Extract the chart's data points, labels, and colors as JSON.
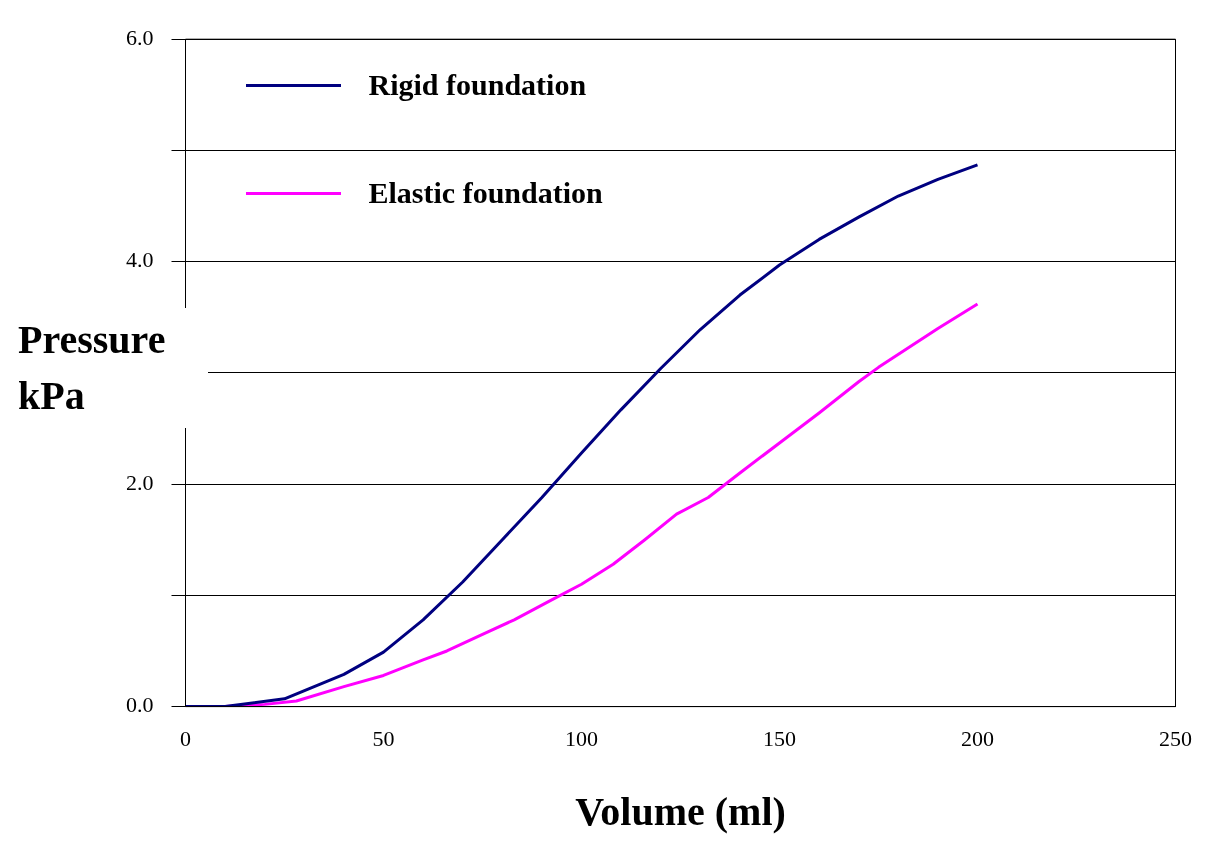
{
  "chart_data": {
    "type": "line",
    "xlabel": "Volume (ml)",
    "ylabel": "Pressure kPa",
    "xlim": [
      0,
      250
    ],
    "xticks": [
      0,
      50,
      100,
      150,
      200,
      250
    ],
    "ylim": [
      0,
      6
    ],
    "yticks": [
      {
        "value": 0,
        "label": "0.0"
      },
      {
        "value": 1,
        "label": null
      },
      {
        "value": 2,
        "label": "2.0"
      },
      {
        "value": 3,
        "label": null
      },
      {
        "value": 4,
        "label": "4.0"
      },
      {
        "value": 5,
        "label": null
      },
      {
        "value": 6,
        "label": "6.0"
      }
    ],
    "grid": "y",
    "legend": "top left",
    "marker": "none",
    "line_style": "solid",
    "series": [
      {
        "name": "Rigid foundation",
        "color": "#000080",
        "x": [
          0,
          10,
          25,
          40,
          50,
          60,
          70,
          80,
          90,
          100,
          110,
          120,
          130,
          140,
          150,
          160,
          170,
          180,
          190,
          200
        ],
        "values": [
          0,
          0,
          0.07,
          0.29,
          0.49,
          0.78,
          1.12,
          1.5,
          1.88,
          2.28,
          2.67,
          3.04,
          3.39,
          3.7,
          3.97,
          4.2,
          4.4,
          4.59,
          4.74,
          4.87
        ]
      },
      {
        "name": "Elastic foundation",
        "color": "#ff00ff",
        "x": [
          0,
          10,
          20,
          28,
          40,
          50,
          60,
          66,
          75,
          83,
          92,
          100,
          108,
          116,
          124,
          132,
          140,
          150,
          160,
          170,
          175,
          190,
          200
        ],
        "values": [
          0,
          0,
          0.02,
          0.05,
          0.18,
          0.28,
          0.42,
          0.5,
          0.65,
          0.78,
          0.95,
          1.1,
          1.28,
          1.5,
          1.73,
          1.88,
          2.1,
          2.37,
          2.64,
          2.92,
          3.05,
          3.4,
          3.62
        ]
      }
    ]
  }
}
